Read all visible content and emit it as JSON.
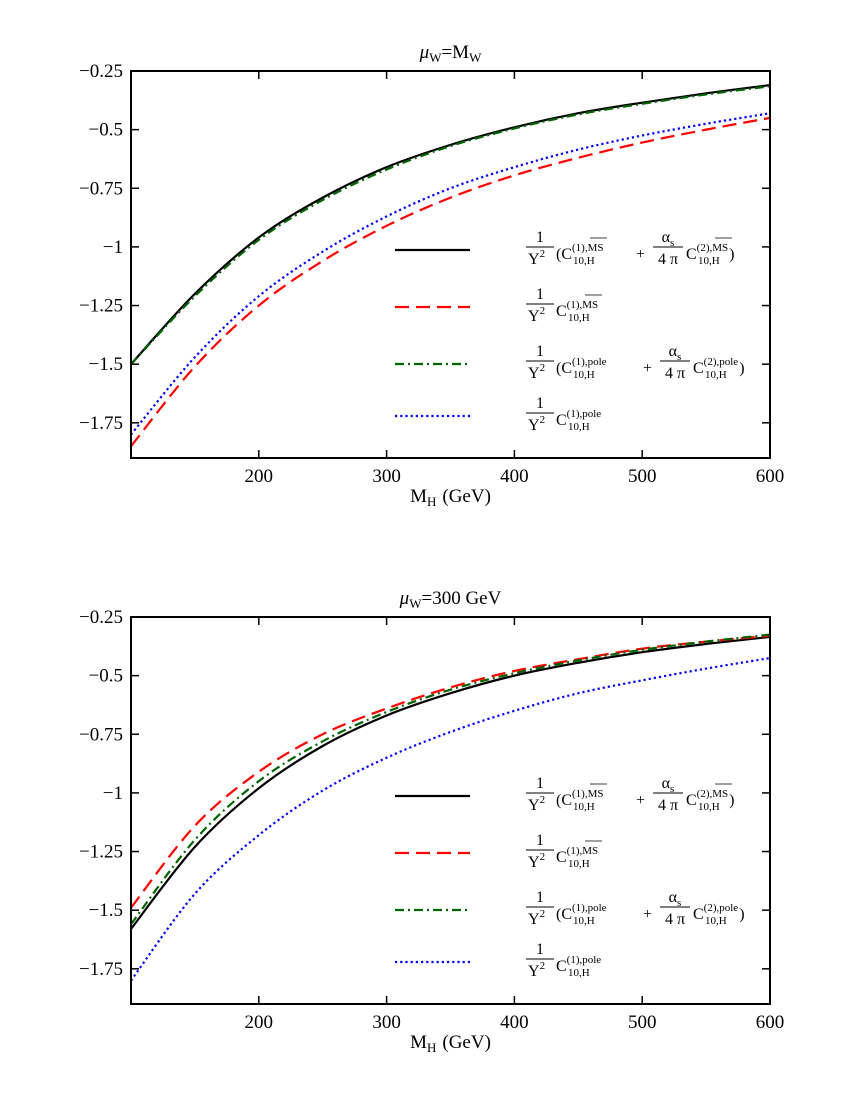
{
  "chart_data": [
    {
      "type": "line",
      "title": "μ_W=M_W",
      "title_parts": {
        "mu": "μ",
        "mu_sub": "W",
        "eq": "=M",
        "m_sub": "W"
      },
      "xlabel": "M_H (GeV)",
      "xlabel_parts": {
        "main": "M",
        "sub": "H",
        "unit": "(GeV)"
      },
      "xlim": [
        100,
        600
      ],
      "ylim": [
        -1.9,
        -0.25
      ],
      "xticks": [
        200,
        300,
        400,
        500,
        600
      ],
      "xtick_labels": [
        "200",
        "300",
        "400",
        "500",
        "600"
      ],
      "yticks": [
        -0.25,
        -0.5,
        -0.75,
        -1,
        -1.25,
        -1.5,
        -1.75
      ],
      "ytick_labels": [
        "−0.25",
        "−0.5",
        "−0.75",
        "−1",
        "−1.25",
        "−1.5",
        "−1.75"
      ],
      "legend_position": "lower-right",
      "x": [
        100,
        150,
        200,
        250,
        300,
        350,
        400,
        450,
        500,
        550,
        600
      ],
      "series": [
        {
          "style": "solid",
          "color": "#000000",
          "values": [
            -1.5,
            -1.2,
            -0.96,
            -0.79,
            -0.66,
            -0.565,
            -0.49,
            -0.43,
            -0.385,
            -0.345,
            -0.31
          ]
        },
        {
          "style": "dashed",
          "color": "#ff0000",
          "values": [
            -1.85,
            -1.51,
            -1.25,
            -1.06,
            -0.91,
            -0.79,
            -0.695,
            -0.62,
            -0.555,
            -0.5,
            -0.45
          ]
        },
        {
          "style": "dashdot",
          "color": "#006400",
          "values": [
            -1.5,
            -1.21,
            -0.97,
            -0.8,
            -0.67,
            -0.57,
            -0.495,
            -0.435,
            -0.39,
            -0.35,
            -0.315
          ]
        },
        {
          "style": "dotted",
          "color": "#0000ff",
          "values": [
            -1.8,
            -1.47,
            -1.21,
            -1.02,
            -0.87,
            -0.75,
            -0.66,
            -0.585,
            -0.525,
            -0.475,
            -0.43
          ]
        }
      ]
    },
    {
      "type": "line",
      "title": "μ_W=300 GeV",
      "title_parts": {
        "mu": "μ",
        "mu_sub": "W",
        "eq": "=300 GeV",
        "m_sub": ""
      },
      "xlabel": "M_H (GeV)",
      "xlabel_parts": {
        "main": "M",
        "sub": "H",
        "unit": "(GeV)"
      },
      "xlim": [
        100,
        600
      ],
      "ylim": [
        -1.9,
        -0.25
      ],
      "xticks": [
        200,
        300,
        400,
        500,
        600
      ],
      "xtick_labels": [
        "200",
        "300",
        "400",
        "500",
        "600"
      ],
      "yticks": [
        -0.25,
        -0.5,
        -0.75,
        -1,
        -1.25,
        -1.5,
        -1.75
      ],
      "ytick_labels": [
        "−0.25",
        "−0.5",
        "−0.75",
        "−1",
        "−1.25",
        "−1.5",
        "−1.75"
      ],
      "legend_position": "lower-right",
      "x": [
        100,
        150,
        200,
        250,
        300,
        350,
        400,
        450,
        500,
        550,
        600
      ],
      "series": [
        {
          "style": "solid",
          "color": "#000000",
          "values": [
            -1.58,
            -1.23,
            -0.98,
            -0.8,
            -0.67,
            -0.575,
            -0.5,
            -0.445,
            -0.4,
            -0.365,
            -0.335
          ]
        },
        {
          "style": "dashed",
          "color": "#ff0000",
          "values": [
            -1.49,
            -1.14,
            -0.91,
            -0.75,
            -0.64,
            -0.55,
            -0.48,
            -0.43,
            -0.385,
            -0.355,
            -0.33
          ]
        },
        {
          "style": "dashdot",
          "color": "#006400",
          "values": [
            -1.56,
            -1.2,
            -0.95,
            -0.78,
            -0.655,
            -0.56,
            -0.49,
            -0.435,
            -0.39,
            -0.355,
            -0.325
          ]
        },
        {
          "style": "dotted",
          "color": "#0000ff",
          "values": [
            -1.8,
            -1.43,
            -1.18,
            -0.99,
            -0.85,
            -0.74,
            -0.65,
            -0.575,
            -0.52,
            -0.47,
            -0.425
          ]
        }
      ]
    }
  ],
  "legend": {
    "one": "1",
    "y2": "Y",
    "y2_sup": "2",
    "C": "C",
    "sub": "10,H",
    "sup_ms1": "(1),MS",
    "sup_ms2": "(2),MS",
    "sup_pole1": "(1),pole",
    "sup_pole2": "(2),pole",
    "plus": "+",
    "open": "(",
    "close": ")",
    "alpha": "α",
    "alpha_sub": "s",
    "four_pi": "4 π"
  }
}
